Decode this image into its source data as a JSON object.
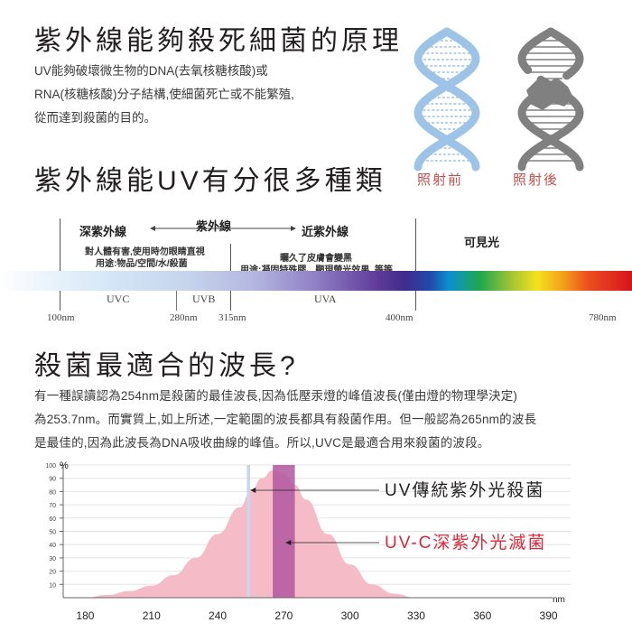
{
  "section1": {
    "title": "紫外線能夠殺死細菌的原理",
    "lines": [
      "UV能夠破壞微生物的DNA(去氧核糖核酸)或",
      "RNA(核糖核酸)分子結構,使細菌死亡或不能繁殖,",
      "從而達到殺菌的目的。"
    ],
    "before_label": "照射前",
    "after_label": "照射後",
    "colors": {
      "dna_before": "#9dc3e6",
      "dna_after": "#808080",
      "caption": "#c0504d"
    }
  },
  "section2": {
    "title": "紫外線能UV有分很多種類",
    "deep_uv": "深紫外線",
    "uv": "紫外線",
    "near_uv": "近紫外線",
    "visible": "可見光",
    "deep_note1": "對人體有害,使用時勿眼睛直視",
    "deep_note2": "用途:物品/空間/水/殺菌",
    "near_note1": "曬久了皮膚會變黑",
    "near_note2": "用途:凝固特殊膠、顯現螢光效果..等等",
    "bands": {
      "uvc": "UVC",
      "uvb": "UVB",
      "uva": "UVA"
    },
    "wavelengths": {
      "w100": "100nm",
      "w280": "280nm",
      "w315": "315nm",
      "w400": "400nm",
      "w780": "780nm"
    }
  },
  "section3": {
    "title": "殺菌最適合的波長?",
    "lines": [
      "有一種誤讀認為254nm是殺菌的最佳波長,因為低壓汞燈的峰值波長(僅由燈的物理學決定)",
      "為253.7nm。而實質上,如上所述,一定範圍的波長都具有殺菌作用。但一般認為265nm的波長",
      "是最佳的,因為此波長為DNA吸收曲線的峰值。所以,UVC是最適合用來殺菌的波段。"
    ]
  },
  "chart_data": {
    "type": "area",
    "ylabel": "%",
    "xlabel": "nm",
    "x_ticks": [
      180,
      210,
      240,
      270,
      300,
      330,
      360,
      390
    ],
    "y_ticks": [
      10,
      20,
      30,
      40,
      50,
      60,
      70,
      80,
      90,
      100
    ],
    "xlim": [
      170,
      400
    ],
    "ylim": [
      0,
      100
    ],
    "curve": {
      "x": [
        180,
        190,
        200,
        210,
        220,
        230,
        240,
        250,
        255,
        260,
        265,
        270,
        275,
        280,
        290,
        300,
        310,
        320,
        330
      ],
      "y": [
        0,
        2,
        5,
        9,
        17,
        30,
        48,
        68,
        80,
        90,
        96,
        93,
        85,
        74,
        48,
        25,
        10,
        3,
        0
      ]
    },
    "markers": [
      {
        "label": "UV傳統紫外光殺菌",
        "x_center": 254,
        "x_width": 1.5,
        "color": "#c6d7ee",
        "text_color": "#231f20"
      },
      {
        "label": "UV-C深紫外光滅菌",
        "x_center": 270,
        "x_width": 10,
        "color": "#b45aa0",
        "text_color": "#d9283b"
      }
    ],
    "curve_color": "#f5bcc8",
    "grid": true
  }
}
